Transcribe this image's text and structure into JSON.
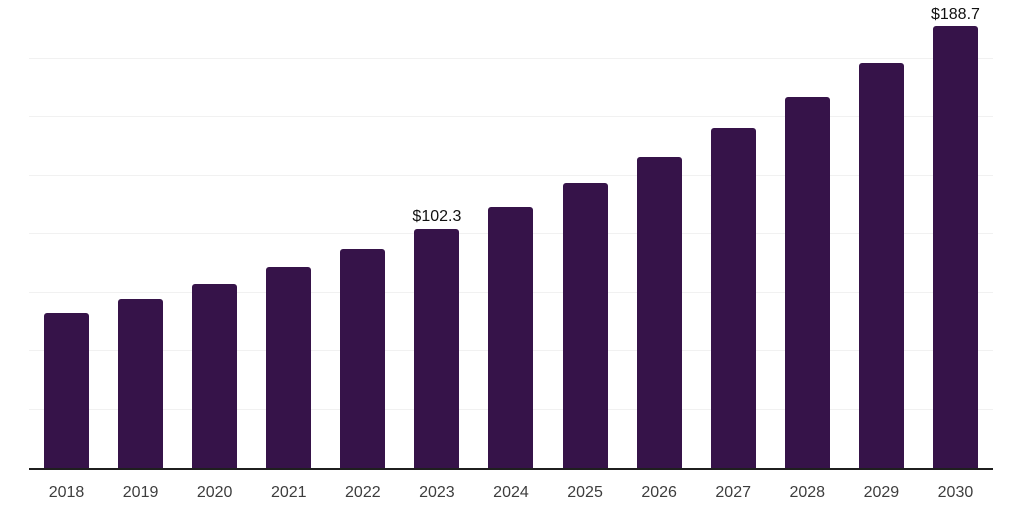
{
  "chart_data": {
    "type": "bar",
    "title": "",
    "xlabel": "",
    "ylabel": "",
    "categories": [
      "2018",
      "2019",
      "2020",
      "2021",
      "2022",
      "2023",
      "2024",
      "2025",
      "2026",
      "2027",
      "2028",
      "2029",
      "2030"
    ],
    "values": [
      66.1,
      72.2,
      78.7,
      85.9,
      93.7,
      102.3,
      111.7,
      121.9,
      133.0,
      145.2,
      158.5,
      172.9,
      188.7
    ],
    "data_labels": [
      "",
      "",
      "",
      "",
      "",
      "$102.3",
      "",
      "",
      "",
      "",
      "",
      "",
      "$188.7"
    ],
    "ylim": [
      0,
      200
    ],
    "gridline_step": 25,
    "grid": true,
    "legend_position": "none",
    "colors": {
      "bar": "#361349",
      "axis_line": "#1f1f1f",
      "gridline": "#f1f1f1",
      "x_tick_label": "#3d3d3d",
      "value_label": "#111111"
    }
  }
}
